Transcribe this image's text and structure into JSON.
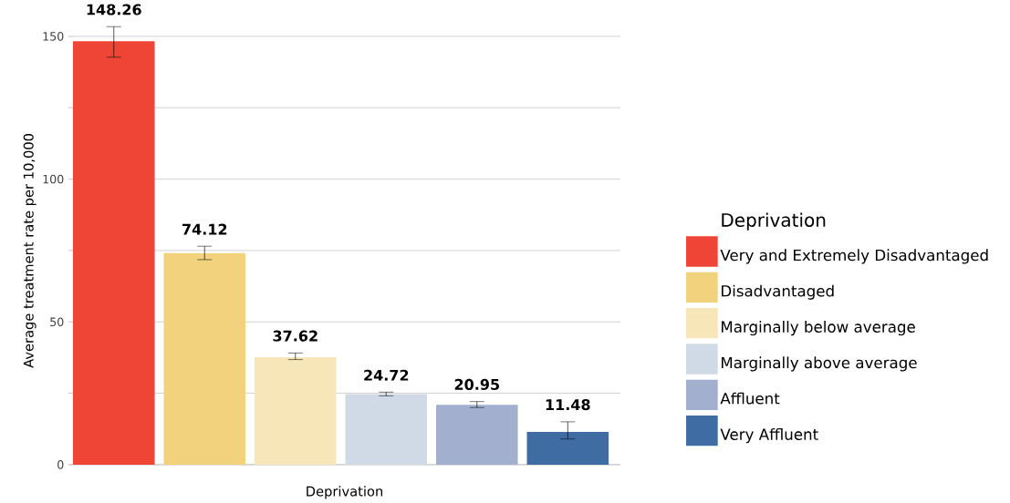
{
  "chart_data": {
    "type": "bar",
    "xlabel": "Deprivation",
    "ylabel": "Average treatment rate per 10,000",
    "legend_title": "Deprivation",
    "categories": [
      null,
      null,
      null,
      null,
      null,
      null
    ],
    "series": [
      {
        "name": "Very and Extremely Disadvantaged",
        "color": "#ef4536",
        "values": [
          148.26,
          null,
          null,
          null,
          null,
          null
        ],
        "errors": [
          [
            142.7,
            153.4
          ],
          null,
          null,
          null,
          null,
          null
        ]
      },
      {
        "name": "Disadvantaged",
        "color": "#f2d27c",
        "values": [
          null,
          74.12,
          null,
          null,
          null,
          null
        ],
        "errors": [
          null,
          [
            71.8,
            76.5
          ],
          null,
          null,
          null,
          null
        ]
      },
      {
        "name": "Marginally below average",
        "color": "#f7e6b8",
        "values": [
          null,
          null,
          37.62,
          null,
          null,
          null
        ],
        "errors": [
          null,
          null,
          [
            36.8,
            39.1
          ],
          null,
          null,
          null
        ]
      },
      {
        "name": "Marginally above average",
        "color": "#cfdae6",
        "values": [
          null,
          null,
          null,
          24.72,
          null,
          null
        ],
        "errors": [
          null,
          null,
          null,
          [
            24.1,
            25.4
          ],
          null,
          null
        ]
      },
      {
        "name": "Affluent",
        "color": "#a2afcf",
        "values": [
          null,
          null,
          null,
          null,
          20.95,
          null
        ],
        "errors": [
          null,
          null,
          null,
          null,
          [
            20.0,
            22.1
          ],
          null
        ]
      },
      {
        "name": "Very Affluent",
        "color": "#3e6ca3",
        "values": [
          null,
          null,
          null,
          null,
          null,
          11.48
        ],
        "errors": [
          null,
          null,
          null,
          null,
          null,
          [
            9.0,
            15.0
          ]
        ]
      }
    ],
    "ylim": [
      0,
      150
    ],
    "yticks": [
      0,
      {
        "value": 25,
        "label": null
      },
      50,
      {
        "value": 75,
        "label": null
      },
      100,
      {
        "value": 125,
        "label": null
      },
      150
    ],
    "grid": "y",
    "legend": "right",
    "data_labels": true
  }
}
